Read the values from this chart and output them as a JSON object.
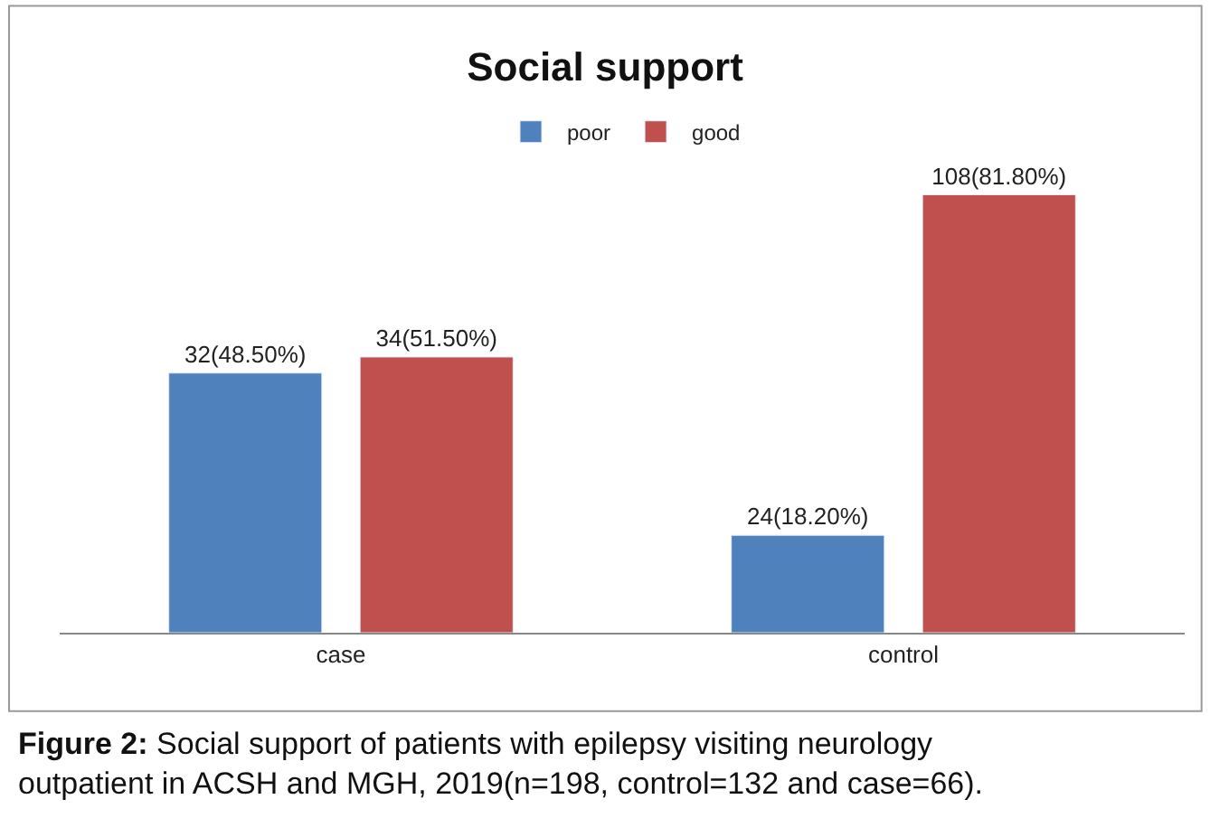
{
  "chart_data": {
    "type": "bar",
    "title": "Social support",
    "categories": [
      "case",
      "control"
    ],
    "series": [
      {
        "name": "poor",
        "color": "#4f81bd",
        "values": [
          48.5,
          18.2
        ],
        "value_labels": [
          "32(48.50%)",
          "24(18.20%)"
        ]
      },
      {
        "name": "good",
        "color": "#c0504d",
        "values": [
          51.5,
          81.8
        ],
        "value_labels": [
          "34(51.50%)",
          "108(81.80%)"
        ]
      }
    ],
    "tick_labels": "x",
    "legend": "top",
    "annotations": [
      "Figure 2: Social support of patients with epilepsy visiting neurology outpatient in ACSH and MGH, 2019(n=198, control=132 and case=66)."
    ]
  }
}
